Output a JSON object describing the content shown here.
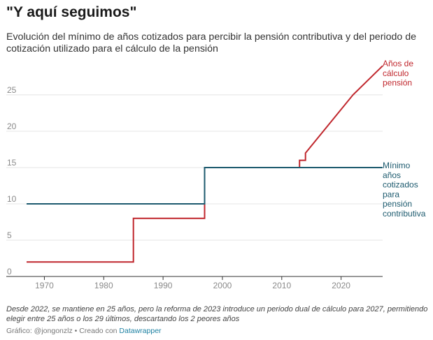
{
  "header": {
    "title": "\"Y aquí seguimos\"",
    "subtitle": "Evolución del mínimo de años cotizados para percibir la pensión contributiva y del periodo de cotización utilizado para el cálculo de la pensión"
  },
  "footer": {
    "notes": "Desde 2022, se mantiene en 25 años, pero la reforma de 2023 introduce un periodo dual de cálculo para 2027, permitiendo elegir entre 25 años o los 29 últimos, descartando los 2 peores años",
    "credit_prefix": "Gráfico: @jongonzlz • Creado con ",
    "credit_link": "Datawrapper"
  },
  "chart_data": {
    "type": "line",
    "xlim": [
      1965,
      2028
    ],
    "ylim": [
      0,
      28.5
    ],
    "x_ticks": [
      1970,
      1980,
      1990,
      2000,
      2010,
      2020
    ],
    "y_ticks": [
      0,
      5,
      10,
      15,
      20,
      25
    ],
    "grid": true,
    "series": [
      {
        "name": "Años de cálculo pensión",
        "label_lines": [
          "Años de",
          "cálculo",
          "pensión"
        ],
        "color": "#c0272d",
        "points": [
          [
            1967,
            2
          ],
          [
            1985,
            2
          ],
          [
            1985,
            8
          ],
          [
            1997,
            8
          ],
          [
            1997,
            15
          ],
          [
            2013,
            15
          ],
          [
            2013,
            16
          ],
          [
            2014,
            16
          ],
          [
            2014,
            17
          ],
          [
            2022,
            25
          ],
          [
            2027,
            29
          ]
        ]
      },
      {
        "name": "Mínimo años cotizados para pensión contributiva",
        "label_lines": [
          "Mínimo",
          "años",
          "cotizados",
          "para",
          "pensión",
          "contributiva"
        ],
        "color": "#1c5a6e",
        "points": [
          [
            1967,
            10
          ],
          [
            1997,
            10
          ],
          [
            1997,
            15
          ],
          [
            2027,
            15
          ]
        ]
      }
    ]
  }
}
